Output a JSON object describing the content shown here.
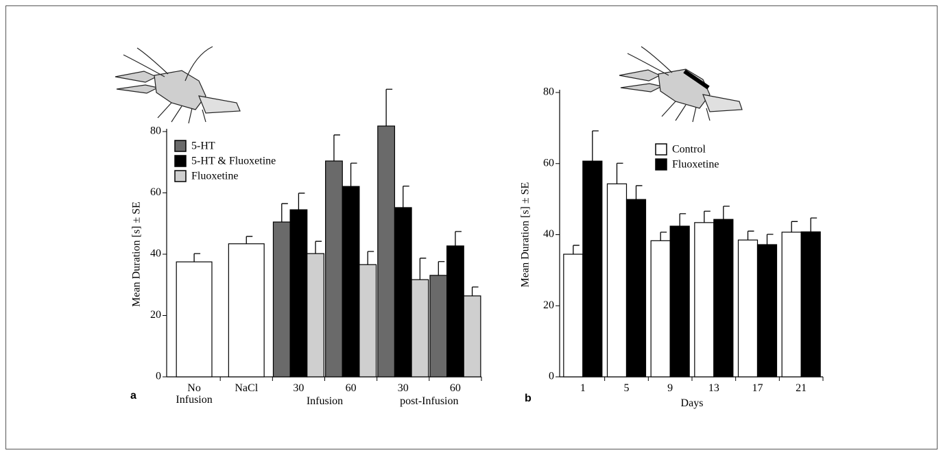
{
  "chart_data": [
    {
      "type": "bar",
      "panel": "a",
      "ylabel": "Mean Duration [s] ± SE",
      "categories": [
        "No Infusion",
        "NaCl",
        "30",
        "60",
        "30",
        "60"
      ],
      "x_group_labels": [
        "Infusion",
        "post-Infusion"
      ],
      "ylim": [
        0,
        80
      ],
      "yticks": [
        0,
        20,
        40,
        60,
        80
      ],
      "series": [
        {
          "color": "#ffffff",
          "values": [
            37.5,
            43.4,
            null,
            null,
            null,
            null
          ],
          "errors": [
            2.7,
            2.4,
            null,
            null,
            null,
            null
          ]
        },
        {
          "name": "5-HT",
          "color": "#6a6a6a",
          "values": [
            null,
            null,
            50.5,
            70.4,
            81.8,
            33.1
          ],
          "errors": [
            null,
            null,
            6,
            8.5,
            12,
            4.5
          ]
        },
        {
          "name": "5-HT & Fluoxetine",
          "color": "#000000",
          "values": [
            null,
            null,
            54.5,
            62.1,
            55.2,
            42.7
          ],
          "errors": [
            null,
            null,
            5.4,
            7.6,
            7,
            4.7
          ]
        },
        {
          "name": "Fluoxetine",
          "color": "#cfcfcf",
          "values": [
            null,
            null,
            40.2,
            36.6,
            31.7,
            26.4
          ],
          "errors": [
            null,
            null,
            4,
            4.3,
            7,
            2.9
          ]
        }
      ]
    },
    {
      "type": "bar",
      "panel": "b",
      "ylabel": "Mean Duration [s] ± SE",
      "xlabel": "Days",
      "categories": [
        "1",
        "5",
        "9",
        "13",
        "17",
        "21"
      ],
      "ylim": [
        0,
        80
      ],
      "yticks": [
        0,
        20,
        40,
        60,
        80
      ],
      "series": [
        {
          "name": "Control",
          "color": "#ffffff",
          "values": [
            34.5,
            54.3,
            38.3,
            43.4,
            38.5,
            40.7
          ],
          "errors": [
            2.5,
            5.8,
            2.4,
            3.2,
            2.5,
            3
          ]
        },
        {
          "name": "Fluoxetine",
          "color": "#000000",
          "values": [
            60.7,
            49.9,
            42.4,
            44.3,
            37.2,
            40.8
          ],
          "errors": [
            8.5,
            3.9,
            3.5,
            3.7,
            2.9,
            3.9
          ]
        }
      ]
    }
  ]
}
